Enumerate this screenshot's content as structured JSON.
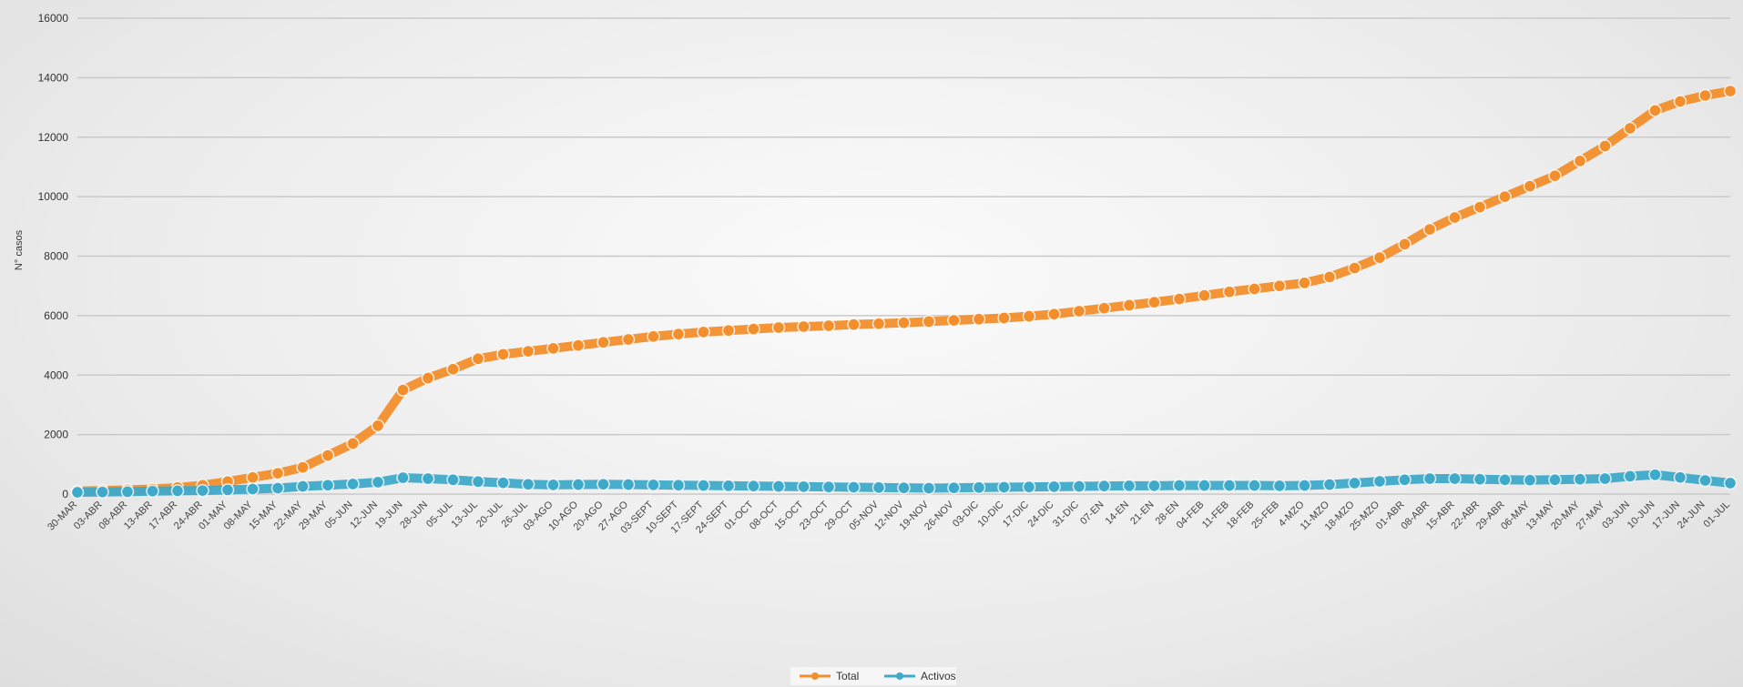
{
  "chart_data": {
    "type": "line",
    "title": "",
    "xlabel": "",
    "ylabel": "N° casos",
    "ylim": [
      0,
      16000
    ],
    "yticks": [
      "0",
      "2000",
      "4000",
      "6000",
      "8000",
      "10000",
      "12000",
      "14000",
      "16000"
    ],
    "grid": true,
    "legend_position": "bottom-center",
    "x": [
      "30-MAR",
      "03-ABR",
      "08-ABR",
      "13-ABR",
      "17-ABR",
      "24-ABR",
      "01-MAY",
      "08-MAY",
      "15-MAY",
      "22-MAY",
      "29-MAY",
      "05-JUN",
      "12-JUN",
      "19-JUN",
      "28-JUN",
      "05-JUL",
      "13-JUL",
      "20-JUL",
      "26-JUL",
      "03-AGO",
      "10-AGO",
      "20-AGO",
      "27-AGO",
      "03-SEPT",
      "10-SEPT",
      "17-SEPT",
      "24-SEPT",
      "01-OCT",
      "08-OCT",
      "15-OCT",
      "23-OCT",
      "29-OCT",
      "05-NOV",
      "12-NOV",
      "19-NOV",
      "26-NOV",
      "03-DIC",
      "10-DIC",
      "17-DIC",
      "24-DIC",
      "31-DIC",
      "07-EN",
      "14-EN",
      "21-EN",
      "28-EN",
      "04-FEB",
      "11-FEB",
      "18-FEB",
      "25-FEB",
      "4-MZO",
      "11-MZO",
      "18-MZO",
      "25-MZO",
      "01-ABR",
      "08-ABR",
      "15-ABR",
      "22-ABR",
      "29-ABR",
      "06-MAY",
      "13-MAY",
      "20-MAY",
      "27-MAY",
      "03-JUN",
      "10-JUN",
      "17-JUN",
      "24-JUN",
      "01-JUL"
    ],
    "series": [
      {
        "name": "Total",
        "color": "#f28e2b",
        "values": [
          100,
          120,
          140,
          170,
          220,
          300,
          420,
          560,
          700,
          900,
          1300,
          1700,
          2300,
          3500,
          3900,
          4200,
          4550,
          4700,
          4800,
          4900,
          5000,
          5100,
          5200,
          5300,
          5380,
          5450,
          5500,
          5550,
          5600,
          5630,
          5660,
          5700,
          5730,
          5760,
          5800,
          5840,
          5880,
          5920,
          5980,
          6050,
          6150,
          6250,
          6350,
          6450,
          6560,
          6680,
          6800,
          6900,
          7000,
          7100,
          7300,
          7600,
          7950,
          8400,
          8900,
          9300,
          9650,
          10000,
          10350,
          10700,
          11200,
          11700,
          12300,
          12900,
          13200,
          13400,
          13550
        ]
      },
      {
        "name": "Activos",
        "color": "#3fa9c9",
        "values": [
          60,
          70,
          80,
          100,
          110,
          120,
          140,
          170,
          200,
          260,
          300,
          340,
          400,
          550,
          520,
          480,
          420,
          380,
          330,
          310,
          320,
          330,
          320,
          310,
          300,
          290,
          280,
          270,
          260,
          250,
          240,
          230,
          220,
          210,
          200,
          210,
          220,
          230,
          240,
          250,
          260,
          270,
          280,
          280,
          290,
          290,
          290,
          290,
          280,
          290,
          320,
          370,
          430,
          480,
          520,
          520,
          500,
          480,
          470,
          480,
          500,
          520,
          600,
          650,
          560,
          460,
          370
        ]
      }
    ]
  }
}
